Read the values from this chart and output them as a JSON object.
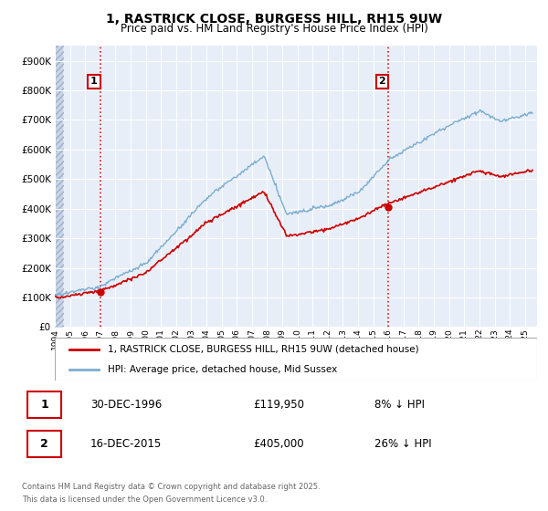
{
  "title": "1, RASTRICK CLOSE, BURGESS HILL, RH15 9UW",
  "subtitle": "Price paid vs. HM Land Registry's House Price Index (HPI)",
  "legend_text1": "1, RASTRICK CLOSE, BURGESS HILL, RH15 9UW (detached house)",
  "legend_text2": "HPI: Average price, detached house, Mid Sussex",
  "marker1_date": "30-DEC-1996",
  "marker1_price": "£119,950",
  "marker1_hpi": "8% ↓ HPI",
  "marker2_date": "16-DEC-2015",
  "marker2_price": "£405,000",
  "marker2_hpi": "26% ↓ HPI",
  "footer_line1": "Contains HM Land Registry data © Crown copyright and database right 2025.",
  "footer_line2": "This data is licensed under the Open Government Licence v3.0.",
  "price_color": "#cc0000",
  "hpi_color": "#7aadcf",
  "marker_box_color": "#cc0000",
  "vline_color": "#cc0000",
  "plot_bg_color": "#e8eef8",
  "hatch_color": "#c8d4e8",
  "ylim": [
    0,
    950000
  ],
  "xlim_start": 1994.0,
  "xlim_end": 2025.8,
  "marker1_x": 1996.99,
  "marker2_x": 2015.99,
  "marker1_y": 119950,
  "marker2_y": 405000,
  "data_start_x": 1995.0
}
